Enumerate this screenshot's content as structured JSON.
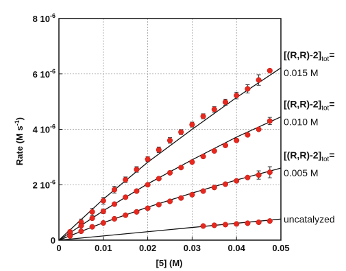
{
  "chart_data": {
    "type": "scatter",
    "xlabel": "[5] (M)",
    "ylabel": "Rate (M s",
    "ylabel_exp": "-1",
    "ylabel_close": ")",
    "xlim": [
      0,
      0.05
    ],
    "ylim": [
      0,
      8e-06
    ],
    "grid": true,
    "x_ticks": [
      {
        "value": 0,
        "label": "0"
      },
      {
        "value": 0.01,
        "label": "0.01"
      },
      {
        "value": 0.02,
        "label": "0.02"
      },
      {
        "value": 0.03,
        "label": "0.03"
      },
      {
        "value": 0.04,
        "label": "0.04"
      },
      {
        "value": 0.05,
        "label": "0.05"
      }
    ],
    "y_ticks": [
      {
        "value": 0,
        "mant": "0",
        "exp": ""
      },
      {
        "value": 2e-06,
        "mant": "2 10",
        "exp": "-6"
      },
      {
        "value": 4e-06,
        "mant": "4 10",
        "exp": "-6"
      },
      {
        "value": 6e-06,
        "mant": "6 10",
        "exp": "-6"
      },
      {
        "value": 8e-06,
        "mant": "8 10",
        "exp": "-6"
      }
    ],
    "marker_color": "#e8281e",
    "line_color": "#111111",
    "series": [
      {
        "id": "s015",
        "label_lines": [
          {
            "main": "[(R,R)-2]",
            "sub": "tot",
            "tail": "="
          },
          {
            "main": "0.015 M"
          }
        ],
        "x": [
          0.0025,
          0.005,
          0.0075,
          0.01,
          0.0125,
          0.015,
          0.0175,
          0.02,
          0.0225,
          0.025,
          0.0275,
          0.03,
          0.0325,
          0.035,
          0.0375,
          0.04,
          0.0425,
          0.045,
          0.0475
        ],
        "y": [
          3e-07,
          6.5e-07,
          1.02e-06,
          1.42e-06,
          1.82e-06,
          2.18e-06,
          2.55e-06,
          2.92e-06,
          3.26e-06,
          3.6e-06,
          3.9e-06,
          4.17e-06,
          4.47e-06,
          4.72e-06,
          4.98e-06,
          5.22e-06,
          5.46e-06,
          5.78e-06,
          6.12e-06
        ],
        "err": [
          0,
          1.1e-07,
          1.3e-07,
          1.2e-07,
          1.2e-07,
          1e-07,
          1e-07,
          9e-08,
          1e-07,
          1e-07,
          9e-08,
          9e-08,
          9e-08,
          1e-07,
          1.1e-07,
          1.2e-07,
          1.5e-07,
          1.9e-07,
          0
        ],
        "fit": [
          [
            0,
            0
          ],
          [
            0.01,
            1.48e-06
          ],
          [
            0.02,
            2.81e-06
          ],
          [
            0.03,
            4e-06
          ],
          [
            0.04,
            5.15e-06
          ],
          [
            0.05,
            6.22e-06
          ]
        ]
      },
      {
        "id": "s010",
        "label_lines": [
          {
            "main": "[(R,R)-2]",
            "sub": "tot",
            "tail": "="
          },
          {
            "main": "0.010 M"
          }
        ],
        "x": [
          0.0025,
          0.005,
          0.0075,
          0.01,
          0.0125,
          0.015,
          0.0175,
          0.02,
          0.0225,
          0.025,
          0.0275,
          0.03,
          0.0325,
          0.035,
          0.0375,
          0.04,
          0.0425,
          0.045,
          0.0475
        ],
        "y": [
          2.5e-07,
          5.2e-07,
          7.9e-07,
          1.04e-06,
          1.3e-06,
          1.55e-06,
          1.77e-06,
          2e-06,
          2.22e-06,
          2.43e-06,
          2.62e-06,
          2.82e-06,
          3.02e-06,
          3.22e-06,
          3.42e-06,
          3.6e-06,
          3.8e-06,
          4e-06,
          4.3e-06
        ],
        "err": [
          0,
          0,
          0,
          8e-08,
          0,
          0,
          0,
          0,
          0,
          0,
          0,
          0,
          0,
          0,
          0,
          0,
          0,
          0,
          1.3e-07
        ],
        "fit": [
          [
            0,
            0
          ],
          [
            0.01,
            1.06e-06
          ],
          [
            0.02,
            2.03e-06
          ],
          [
            0.03,
            2.9e-06
          ],
          [
            0.04,
            3.72e-06
          ],
          [
            0.05,
            4.45e-06
          ]
        ]
      },
      {
        "id": "s005",
        "label_lines": [
          {
            "main": "[(R,R)-2]",
            "sub": "tot",
            "tail": "="
          },
          {
            "main": "0.005 M"
          }
        ],
        "x": [
          0.0025,
          0.005,
          0.0075,
          0.01,
          0.0125,
          0.015,
          0.0175,
          0.02,
          0.0225,
          0.025,
          0.0275,
          0.03,
          0.0325,
          0.035,
          0.0375,
          0.04,
          0.0425,
          0.045,
          0.0475
        ],
        "y": [
          1.5e-07,
          3.2e-07,
          4.8e-07,
          6.2e-07,
          7.7e-07,
          9e-07,
          1.02e-06,
          1.15e-06,
          1.28e-06,
          1.4e-06,
          1.52e-06,
          1.64e-06,
          1.77e-06,
          1.9e-06,
          2.02e-06,
          2.14e-06,
          2.26e-06,
          2.35e-06,
          2.45e-06
        ],
        "err": [
          0,
          0,
          0,
          0,
          0,
          0,
          0,
          0,
          0,
          0,
          0,
          0,
          0,
          0,
          0,
          0,
          0,
          1.5e-07,
          2e-07
        ],
        "fit": [
          [
            0,
            0
          ],
          [
            0.01,
            6.3e-07
          ],
          [
            0.02,
            1.19e-06
          ],
          [
            0.03,
            1.7e-06
          ],
          [
            0.04,
            2.17e-06
          ],
          [
            0.05,
            2.6e-06
          ]
        ]
      },
      {
        "id": "uncat",
        "label_lines": [
          {
            "main": "uncatalyzed"
          }
        ],
        "x": [
          0.0325,
          0.035,
          0.0375,
          0.04,
          0.0425,
          0.045,
          0.0475
        ],
        "y": [
          5.1e-07,
          5.35e-07,
          5.6e-07,
          5.85e-07,
          6.1e-07,
          6.45e-07,
          6.9e-07
        ],
        "err": [
          0,
          0,
          0,
          0,
          0,
          0,
          0
        ],
        "fit": [
          [
            0,
            0
          ],
          [
            0.05,
            7.6e-07
          ]
        ]
      }
    ]
  }
}
